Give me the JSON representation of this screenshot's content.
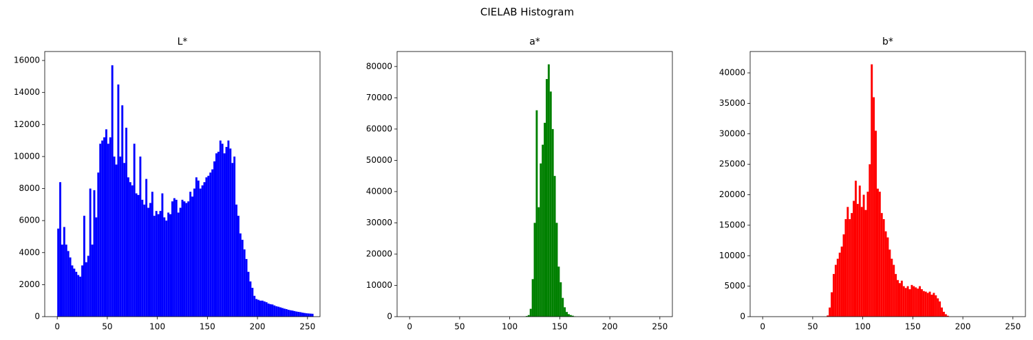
{
  "title": "CIELAB Histogram",
  "chart_data": [
    {
      "type": "histogram",
      "title": "L*",
      "color": "#0000ff",
      "bins": [
        0,
        2,
        4,
        6,
        8,
        10,
        12,
        14,
        16,
        18,
        20,
        22,
        24,
        26,
        28,
        30,
        32,
        34,
        36,
        38,
        40,
        42,
        44,
        46,
        48,
        50,
        52,
        54,
        56,
        58,
        60,
        62,
        64,
        66,
        68,
        70,
        72,
        74,
        76,
        78,
        80,
        82,
        84,
        86,
        88,
        90,
        92,
        94,
        96,
        98,
        100,
        102,
        104,
        106,
        108,
        110,
        112,
        114,
        116,
        118,
        120,
        122,
        124,
        126,
        128,
        130,
        132,
        134,
        136,
        138,
        140,
        142,
        144,
        146,
        148,
        150,
        152,
        154,
        156,
        158,
        160,
        162,
        164,
        166,
        168,
        170,
        172,
        174,
        176,
        178,
        180,
        182,
        184,
        186,
        188,
        190,
        192,
        194,
        196,
        198,
        200,
        202,
        204,
        206,
        208,
        210,
        212,
        214,
        216,
        218,
        220,
        222,
        224,
        226,
        228,
        230,
        232,
        234,
        236,
        238,
        240,
        242,
        244,
        246,
        248,
        250,
        252,
        254,
        256
      ],
      "values": [
        5500,
        8400,
        4500,
        5600,
        4500,
        4100,
        3700,
        3200,
        3000,
        2800,
        2600,
        2500,
        3200,
        6300,
        3400,
        3800,
        8000,
        4500,
        7900,
        6200,
        9000,
        10800,
        11000,
        11200,
        11700,
        10800,
        11200,
        15700,
        10000,
        9500,
        14500,
        10000,
        13200,
        9600,
        11800,
        8700,
        8400,
        8200,
        10800,
        7700,
        7600,
        10000,
        7300,
        7000,
        8600,
        6800,
        7100,
        7800,
        6300,
        6600,
        6400,
        6600,
        7700,
        6200,
        6000,
        6500,
        6400,
        7200,
        7400,
        7300,
        6500,
        6800,
        7300,
        7200,
        7100,
        7200,
        7800,
        7500,
        8000,
        8700,
        8500,
        8000,
        8200,
        8400,
        8700,
        8800,
        9000,
        9200,
        9700,
        10200,
        10300,
        11000,
        10800,
        10200,
        10600,
        11000,
        10500,
        9600,
        10000,
        7000,
        6300,
        5200,
        4800,
        4200,
        3600,
        2800,
        2200,
        1800,
        1300,
        1100,
        1050,
        1000,
        1000,
        950,
        900,
        820,
        780,
        760,
        700,
        650,
        620,
        580,
        540,
        500,
        470,
        430,
        400,
        380,
        350,
        320,
        300,
        280,
        250,
        230,
        210,
        200,
        190,
        180
      ],
      "xlim": [
        -12.5,
        262.5
      ],
      "xticks": [
        0,
        50,
        100,
        150,
        200,
        250
      ],
      "ylim": [
        0,
        16560
      ],
      "yticks": [
        0,
        2000,
        4000,
        6000,
        8000,
        10000,
        12000,
        14000,
        16000
      ]
    },
    {
      "type": "histogram",
      "title": "a*",
      "color": "#008000",
      "bins": [
        0,
        116,
        118,
        120,
        122,
        124,
        126,
        128,
        130,
        132,
        134,
        136,
        138,
        140,
        142,
        144,
        146,
        148,
        150,
        152,
        154,
        156,
        158,
        160,
        162,
        164,
        166,
        256
      ],
      "values": [
        0,
        200,
        500,
        2500,
        12000,
        30000,
        66000,
        35000,
        49000,
        55000,
        62000,
        76000,
        80700,
        72000,
        60000,
        45000,
        30000,
        16000,
        11000,
        6000,
        3000,
        1500,
        800,
        500,
        300,
        100,
        0
      ],
      "xlim": [
        -12.5,
        262.5
      ],
      "xticks": [
        0,
        50,
        100,
        150,
        200,
        250
      ],
      "ylim": [
        0,
        84800
      ],
      "yticks": [
        0,
        10000,
        20000,
        30000,
        40000,
        50000,
        60000,
        70000,
        80000
      ]
    },
    {
      "type": "histogram",
      "title": "b*",
      "color": "#ff0000",
      "bins": [
        0,
        64,
        66,
        68,
        70,
        72,
        74,
        76,
        78,
        80,
        82,
        84,
        86,
        88,
        90,
        92,
        94,
        96,
        98,
        100,
        102,
        104,
        106,
        108,
        110,
        112,
        114,
        116,
        118,
        120,
        122,
        124,
        126,
        128,
        130,
        132,
        134,
        136,
        138,
        140,
        142,
        144,
        146,
        148,
        150,
        152,
        154,
        156,
        158,
        160,
        162,
        164,
        166,
        168,
        170,
        172,
        174,
        176,
        178,
        180,
        182,
        184,
        186,
        256
      ],
      "values": [
        0,
        200,
        1500,
        4000,
        7000,
        8500,
        9500,
        10500,
        11500,
        13500,
        16000,
        18000,
        16000,
        17000,
        19000,
        22300,
        18500,
        21500,
        18000,
        20000,
        17500,
        20500,
        25000,
        41400,
        36000,
        30500,
        21000,
        20500,
        17000,
        16000,
        14000,
        13000,
        11000,
        9500,
        8500,
        7000,
        6000,
        5500,
        5900,
        5000,
        4700,
        5000,
        4500,
        5200,
        5000,
        4800,
        4600,
        5000,
        4500,
        4200,
        4100,
        3900,
        4100,
        3600,
        3900,
        3500,
        3000,
        2500,
        1500,
        800,
        400,
        150,
        0
      ],
      "xlim": [
        -12.5,
        262.5
      ],
      "xticks": [
        0,
        50,
        100,
        150,
        200,
        250
      ],
      "ylim": [
        0,
        43500
      ],
      "yticks": [
        0,
        5000,
        10000,
        15000,
        20000,
        25000,
        30000,
        35000,
        40000
      ]
    }
  ]
}
